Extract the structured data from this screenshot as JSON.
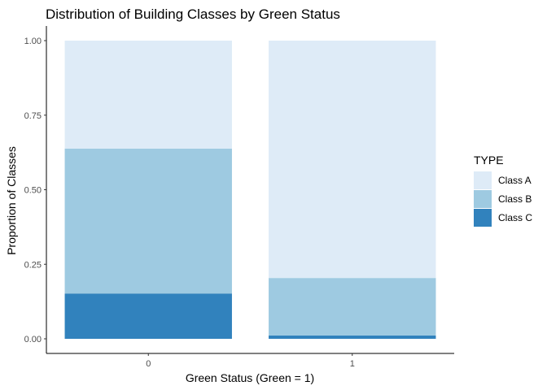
{
  "chart_data": {
    "type": "bar",
    "stacked": true,
    "title": "Distribution of Building Classes by Green Status",
    "xlabel": "Green Status (Green = 1)",
    "ylabel": "Proportion of Classes",
    "categories": [
      "0",
      "1"
    ],
    "ylim": [
      0,
      1
    ],
    "yticks": [
      "0.00",
      "0.25",
      "0.50",
      "0.75",
      "1.00"
    ],
    "grid": false,
    "legend": {
      "title": "TYPE",
      "position": "right"
    },
    "series": [
      {
        "name": "Class C",
        "color": "#3182bd",
        "values": [
          0.152,
          0.011
        ]
      },
      {
        "name": "Class B",
        "color": "#9ecae1",
        "values": [
          0.486,
          0.193
        ]
      },
      {
        "name": "Class A",
        "color": "#deebf7",
        "values": [
          0.362,
          0.796
        ]
      }
    ]
  }
}
